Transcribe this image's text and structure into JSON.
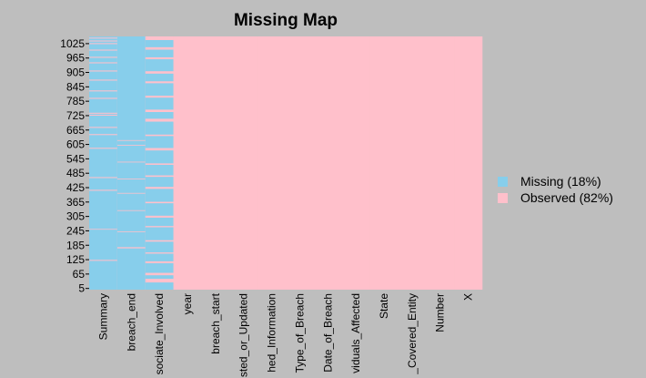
{
  "chart_data": {
    "type": "missmap",
    "title": "Missing Map",
    "missing_color": "#87ceeb",
    "observed_color": "#ffc0cb",
    "legend": [
      {
        "label": "Missing (18%)",
        "color": "#87ceeb"
      },
      {
        "label": "Observed (82%)",
        "color": "#ffc0cb"
      }
    ],
    "ylim": [
      0,
      1055
    ],
    "yticks": [
      5,
      65,
      125,
      185,
      245,
      305,
      365,
      425,
      485,
      545,
      605,
      665,
      725,
      785,
      845,
      905,
      965,
      1025
    ],
    "series": [
      {
        "name": "Summary",
        "missing": [
          [
            0,
            120
          ],
          [
            124,
            250
          ],
          [
            253,
            412
          ],
          [
            416,
            465
          ],
          [
            469,
            587
          ],
          [
            591,
            644
          ],
          [
            648,
            674
          ],
          [
            678,
            725
          ],
          [
            729,
            733
          ],
          [
            737,
            795
          ],
          [
            799,
            826
          ],
          [
            830,
            871
          ],
          [
            875,
            909
          ],
          [
            913,
            943
          ],
          [
            947,
            966
          ],
          [
            970,
            996
          ],
          [
            1000,
            1023
          ],
          [
            1027,
            1034
          ],
          [
            1038,
            1046
          ],
          [
            1050,
            1055
          ]
        ]
      },
      {
        "name": "breach_end",
        "missing": [
          [
            0,
            172
          ],
          [
            177,
            240
          ],
          [
            243,
            328
          ],
          [
            331,
            400
          ],
          [
            403,
            460
          ],
          [
            463,
            530
          ],
          [
            533,
            600
          ],
          [
            603,
            620
          ],
          [
            623,
            1055
          ]
        ]
      },
      {
        "name": "sociate_Involved",
        "missing": [
          [
            0,
            30
          ],
          [
            45,
            60
          ],
          [
            70,
            110
          ],
          [
            118,
            150
          ],
          [
            155,
            200
          ],
          [
            206,
            260
          ],
          [
            265,
            300
          ],
          [
            308,
            360
          ],
          [
            366,
            420
          ],
          [
            428,
            470
          ],
          [
            476,
            520
          ],
          [
            526,
            580
          ],
          [
            590,
            640
          ],
          [
            646,
            700
          ],
          [
            712,
            740
          ],
          [
            750,
            800
          ],
          [
            808,
            860
          ],
          [
            868,
            900
          ],
          [
            910,
            960
          ],
          [
            968,
            1000
          ],
          [
            1010,
            1040
          ]
        ]
      },
      {
        "name": "year",
        "missing": []
      },
      {
        "name": "breach_start",
        "missing": []
      },
      {
        "name": "sted_or_Updated",
        "missing": []
      },
      {
        "name": "hed_Information",
        "missing": []
      },
      {
        "name": "Type_of_Breach",
        "missing": []
      },
      {
        "name": "Date_of_Breach",
        "missing": []
      },
      {
        "name": "viduals_Affected",
        "missing": []
      },
      {
        "name": "State",
        "missing": []
      },
      {
        "name": "_Covered_Entity",
        "missing": []
      },
      {
        "name": "Number",
        "missing": []
      },
      {
        "name": "X",
        "missing": []
      }
    ]
  }
}
